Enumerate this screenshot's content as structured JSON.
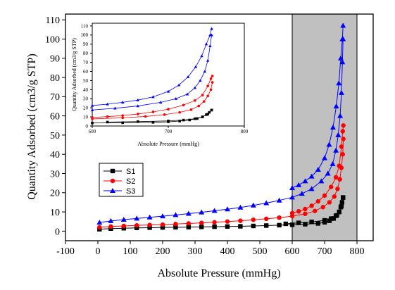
{
  "chart_data": [
    {
      "type": "line",
      "xlabel": "Absolute Pressure (mmHg)",
      "ylabel": "Quantity Adsorbed (cm3/g STP)",
      "xlim": [
        -100,
        850
      ],
      "ylim": [
        -5,
        113
      ],
      "xticks": [
        "-100",
        "0",
        "100",
        "200",
        "300",
        "400",
        "500",
        "600",
        "700",
        "800"
      ],
      "yticks": [
        "0",
        "10",
        "20",
        "30",
        "40",
        "50",
        "60",
        "70",
        "80",
        "90",
        "100",
        "110"
      ],
      "highlight_region": {
        "x_from": 600,
        "x_to": 800,
        "color": "#c0c0c0"
      },
      "legend": {
        "placement": "lower-left"
      },
      "series": [
        {
          "name": "S1",
          "color": "#000000",
          "marker": "square",
          "adsorption": {
            "x": [
              5,
              40,
              80,
              120,
              160,
              200,
              240,
              280,
              320,
              360,
              400,
              440,
              480,
              520,
              560,
              600,
              640,
              680,
              700,
              715,
              728,
              738,
              745,
              750,
              754,
              757
            ],
            "y": [
              1,
              1.3,
              1.5,
              1.7,
              1.8,
              1.9,
              2,
              2.1,
              2.2,
              2.3,
              2.4,
              2.5,
              2.7,
              2.9,
              3.1,
              3.3,
              3.6,
              4,
              4.6,
              5.4,
              6.6,
              8.2,
              10,
              12.5,
              15,
              17.5
            ]
          },
          "desorption": {
            "x": [
              757,
              752,
              745,
              735,
              720,
              700,
              660,
              620,
              580
            ],
            "y": [
              17.5,
              13,
              10,
              8,
              6.5,
              5.6,
              4.8,
              4.3,
              3.8
            ]
          }
        },
        {
          "name": "S2",
          "color": "#ff0000",
          "marker": "circle",
          "adsorption": {
            "x": [
              5,
              40,
              80,
              120,
              160,
              200,
              240,
              280,
              320,
              360,
              400,
              440,
              480,
              520,
              560,
              600,
              640,
              670,
              695,
              715,
              730,
              740,
              747,
              752,
              756,
              758
            ],
            "y": [
              2,
              2.4,
              2.7,
              3,
              3.2,
              3.4,
              3.7,
              4,
              4.3,
              4.6,
              5,
              5.4,
              5.9,
              6.4,
              7,
              7.8,
              9,
              10.5,
              12.5,
              15,
              18,
              22,
              27,
              33,
              40,
              48
            ]
          },
          "desorption": {
            "x": [
              758,
              756,
              752,
              745,
              735,
              720,
              700,
              680,
              660,
              640,
              620,
              600
            ],
            "y": [
              55,
              52,
              44,
              34,
              28,
              23,
              18.5,
              15.5,
              13.2,
              11.5,
              10.3,
              9.4
            ]
          }
        },
        {
          "name": "S3",
          "color": "#0000ff",
          "marker": "triangle",
          "adsorption": {
            "x": [
              5,
              40,
              80,
              120,
              160,
              200,
              240,
              280,
              320,
              360,
              400,
              440,
              480,
              520,
              560,
              600,
              630,
              660,
              690,
              710,
              725,
              735,
              742,
              748,
              752,
              755,
              757
            ],
            "y": [
              4.5,
              5.3,
              6,
              6.6,
              7.2,
              7.8,
              8.4,
              9.1,
              9.8,
              10.6,
              11.4,
              12.3,
              13.4,
              14.6,
              16,
              17.6,
              19.5,
              22,
              26,
              30,
              35,
              42,
              50,
              60,
              72,
              88,
              100
            ]
          },
          "desorption": {
            "x": [
              757,
              755,
              750,
              744,
              736,
              726,
              714,
              700,
              680,
              660,
              640,
              620,
              600
            ],
            "y": [
              107,
              100,
              90,
              77,
              65,
              54,
              45,
              38,
              32,
              28.5,
              26,
              24,
              22.5
            ]
          }
        }
      ]
    },
    {
      "type": "line",
      "xlabel": "Absolute Pressure (mmHg)",
      "ylabel": "Quantity Adsorbed (cm3/g STP)",
      "xlim": [
        600,
        800
      ],
      "ylim": [
        0,
        113
      ],
      "xticks": [
        "600",
        "700",
        "800"
      ],
      "yticks": [
        "0",
        "10",
        "20",
        "30",
        "40",
        "50",
        "60",
        "70",
        "80",
        "90",
        "100",
        "110"
      ],
      "note": "zoomed view of the shaded 600-800 mmHg region",
      "series": [
        {
          "name": "S1",
          "color": "#000000",
          "marker": "square"
        },
        {
          "name": "S2",
          "color": "#ff0000",
          "marker": "circle"
        },
        {
          "name": "S3",
          "color": "#0000ff",
          "marker": "triangle"
        }
      ]
    }
  ]
}
